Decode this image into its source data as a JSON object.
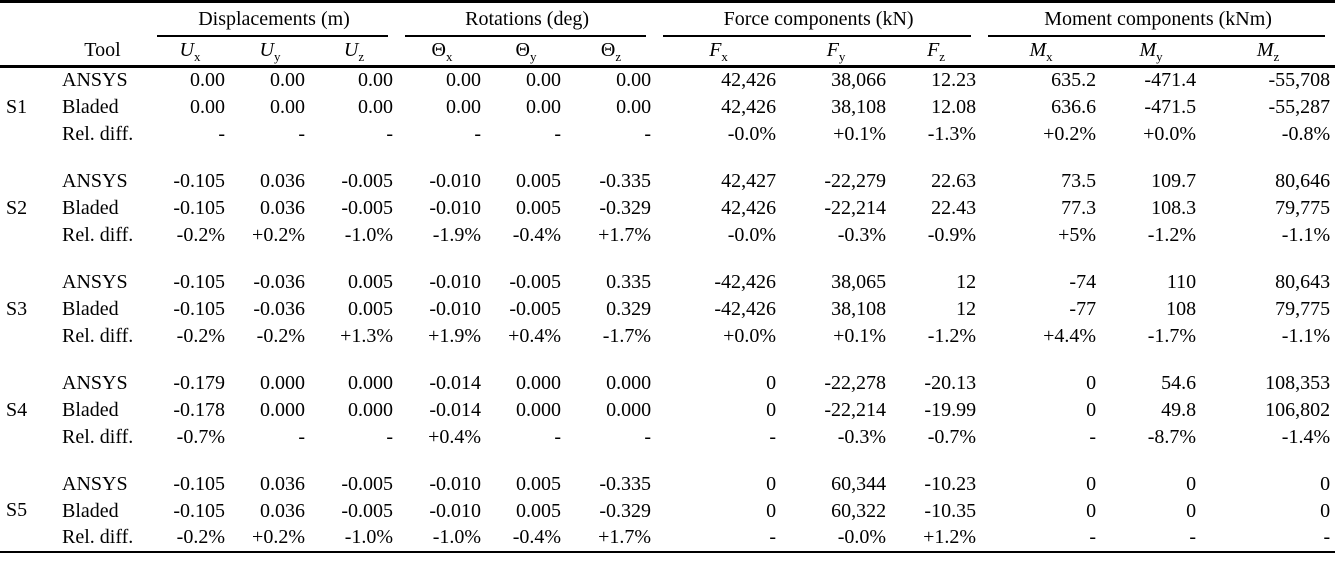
{
  "colors": {
    "text": "#000000",
    "background": "#ffffff",
    "rule": "#000000"
  },
  "table": {
    "tool_header": "Tool",
    "groups": [
      {
        "label": "Displacements (m)",
        "cols": [
          {
            "sym": "U",
            "sub": "x"
          },
          {
            "sym": "U",
            "sub": "y"
          },
          {
            "sym": "U",
            "sub": "z"
          }
        ]
      },
      {
        "label": "Rotations (deg)",
        "cols": [
          {
            "sym": "Θ",
            "sub": "x"
          },
          {
            "sym": "Θ",
            "sub": "y"
          },
          {
            "sym": "Θ",
            "sub": "z"
          }
        ]
      },
      {
        "label": "Force components (kN)",
        "cols": [
          {
            "sym": "F",
            "sub": "x"
          },
          {
            "sym": "F",
            "sub": "y"
          },
          {
            "sym": "F",
            "sub": "z"
          }
        ]
      },
      {
        "label": "Moment components (kNm)",
        "cols": [
          {
            "sym": "M",
            "sub": "x"
          },
          {
            "sym": "M",
            "sub": "y"
          },
          {
            "sym": "M",
            "sub": "z"
          }
        ]
      }
    ],
    "sections": [
      {
        "id": "S1",
        "rows": [
          {
            "tool": "ANSYS",
            "values": [
              "0.00",
              "0.00",
              "0.00",
              "0.00",
              "0.00",
              "0.00",
              "42,426",
              "38,066",
              "12.23",
              "635.2",
              "-471.4",
              "-55,708"
            ]
          },
          {
            "tool": "Bladed",
            "values": [
              "0.00",
              "0.00",
              "0.00",
              "0.00",
              "0.00",
              "0.00",
              "42,426",
              "38,108",
              "12.08",
              "636.6",
              "-471.5",
              "-55,287"
            ]
          },
          {
            "tool": "Rel. diff.",
            "values": [
              "-",
              "-",
              "-",
              "-",
              "-",
              "-",
              "-0.0%",
              "+0.1%",
              "-1.3%",
              "+0.2%",
              "+0.0%",
              "-0.8%"
            ]
          }
        ]
      },
      {
        "id": "S2",
        "rows": [
          {
            "tool": "ANSYS",
            "values": [
              "-0.105",
              "0.036",
              "-0.005",
              "-0.010",
              "0.005",
              "-0.335",
              "42,427",
              "-22,279",
              "22.63",
              "73.5",
              "109.7",
              "80,646"
            ]
          },
          {
            "tool": "Bladed",
            "values": [
              "-0.105",
              "0.036",
              "-0.005",
              "-0.010",
              "0.005",
              "-0.329",
              "42,426",
              "-22,214",
              "22.43",
              "77.3",
              "108.3",
              "79,775"
            ]
          },
          {
            "tool": "Rel. diff.",
            "values": [
              "-0.2%",
              "+0.2%",
              "-1.0%",
              "-1.9%",
              "-0.4%",
              "+1.7%",
              "-0.0%",
              "-0.3%",
              "-0.9%",
              "+5%",
              "-1.2%",
              "-1.1%"
            ]
          }
        ]
      },
      {
        "id": "S3",
        "rows": [
          {
            "tool": "ANSYS",
            "values": [
              "-0.105",
              "-0.036",
              "0.005",
              "-0.010",
              "-0.005",
              "0.335",
              "-42,426",
              "38,065",
              "12",
              "-74",
              "110",
              "80,643"
            ]
          },
          {
            "tool": "Bladed",
            "values": [
              "-0.105",
              "-0.036",
              "0.005",
              "-0.010",
              "-0.005",
              "0.329",
              "-42,426",
              "38,108",
              "12",
              "-77",
              "108",
              "79,775"
            ]
          },
          {
            "tool": "Rel. diff.",
            "values": [
              "-0.2%",
              "-0.2%",
              "+1.3%",
              "+1.9%",
              "+0.4%",
              "-1.7%",
              "+0.0%",
              "+0.1%",
              "-1.2%",
              "+4.4%",
              "-1.7%",
              "-1.1%"
            ]
          }
        ]
      },
      {
        "id": "S4",
        "rows": [
          {
            "tool": "ANSYS",
            "values": [
              "-0.179",
              "0.000",
              "0.000",
              "-0.014",
              "0.000",
              "0.000",
              "0",
              "-22,278",
              "-20.13",
              "0",
              "54.6",
              "108,353"
            ]
          },
          {
            "tool": "Bladed",
            "values": [
              "-0.178",
              "0.000",
              "0.000",
              "-0.014",
              "0.000",
              "0.000",
              "0",
              "-22,214",
              "-19.99",
              "0",
              "49.8",
              "106,802"
            ]
          },
          {
            "tool": "Rel. diff.",
            "values": [
              "-0.7%",
              "-",
              "-",
              "+0.4%",
              "-",
              "-",
              "-",
              "-0.3%",
              "-0.7%",
              "-",
              "-8.7%",
              "-1.4%"
            ]
          }
        ]
      },
      {
        "id": "S5",
        "rows": [
          {
            "tool": "ANSYS",
            "values": [
              "-0.105",
              "0.036",
              "-0.005",
              "-0.010",
              "0.005",
              "-0.335",
              "0",
              "60,344",
              "-10.23",
              "0",
              "0",
              "0"
            ]
          },
          {
            "tool": "Bladed",
            "values": [
              "-0.105",
              "0.036",
              "-0.005",
              "-0.010",
              "0.005",
              "-0.329",
              "0",
              "60,322",
              "-10.35",
              "0",
              "0",
              "0"
            ]
          },
          {
            "tool": "Rel. diff.",
            "values": [
              "-0.2%",
              "+0.2%",
              "-1.0%",
              "-1.0%",
              "-0.4%",
              "+1.7%",
              "-",
              "-0.0%",
              "+1.2%",
              "-",
              "-",
              "-"
            ]
          }
        ]
      }
    ]
  }
}
